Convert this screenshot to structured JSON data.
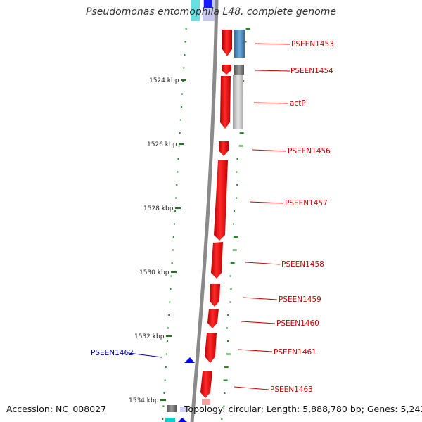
{
  "title": "Pseudomonas entomophila L48, complete genome",
  "footer": {
    "accession": "Accession: NC_008027",
    "summary": "Topology: circular; Length: 5,888,780 bp; Genes: 5,241"
  },
  "ruler_ticks": [
    "1524 kbp",
    "1526 kbp",
    "1528 kbp",
    "1530 kbp",
    "1532 kbp",
    "1534 kbp"
  ],
  "genes_forward": [
    "PSEEN1453",
    "PSEEN1454",
    "actP",
    "PSEEN1456",
    "PSEEN1457",
    "PSEEN1458",
    "PSEEN1459",
    "PSEEN1460",
    "PSEEN1461",
    "PSEEN1463"
  ],
  "genes_reverse": [
    "PSEEN1462"
  ],
  "colors": {
    "forward_cds": "#ff0000",
    "reverse_cds": "#0000ff",
    "forward_label": "#cc0000",
    "reverse_label": "#0000aa",
    "backbone": "#888888",
    "gc_dots": "#228b22",
    "cog_blue": "#4682b4",
    "cog_gray": "#777777",
    "cog_light": "#cccccc",
    "cog_cyan": "#00cccc"
  }
}
